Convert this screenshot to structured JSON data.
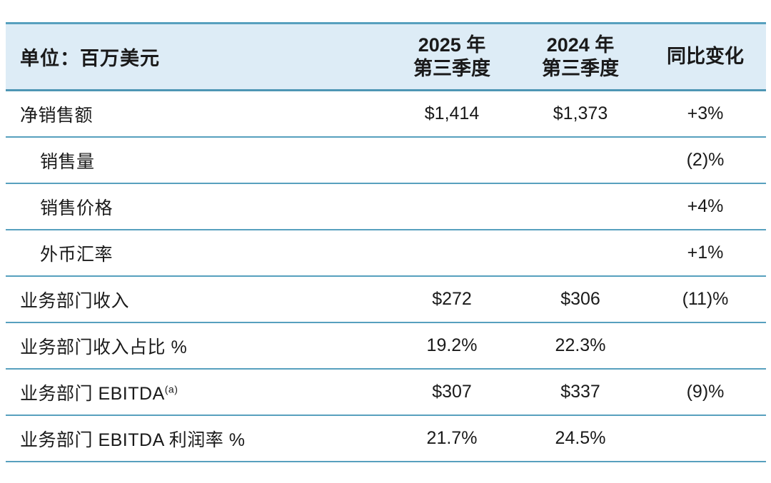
{
  "colors": {
    "header_bg": "#ddecf6",
    "rule_line": "#57a0be",
    "text": "#1a1a1a",
    "page_bg": "#ffffff"
  },
  "table": {
    "columns": [
      {
        "label": "单位：百万美元"
      },
      {
        "line1": "2025 年",
        "line2": "第三季度"
      },
      {
        "line1": "2024 年",
        "line2": "第三季度"
      },
      {
        "label": "同比变化"
      }
    ],
    "rows": [
      {
        "label": "净销售额",
        "sup": "",
        "indent": false,
        "q3_2025": "$1,414",
        "q3_2024": "$1,373",
        "yoy": "+3%"
      },
      {
        "label": "销售量",
        "sup": "",
        "indent": true,
        "q3_2025": "",
        "q3_2024": "",
        "yoy": "(2)%"
      },
      {
        "label": "销售价格",
        "sup": "",
        "indent": true,
        "q3_2025": "",
        "q3_2024": "",
        "yoy": "+4%"
      },
      {
        "label": "外币汇率",
        "sup": "",
        "indent": true,
        "q3_2025": "",
        "q3_2024": "",
        "yoy": "+1%"
      },
      {
        "label": "业务部门收入",
        "sup": "",
        "indent": false,
        "q3_2025": "$272",
        "q3_2024": "$306",
        "yoy": "(11)%"
      },
      {
        "label": "业务部门收入占比 %",
        "sup": "",
        "indent": false,
        "q3_2025": "19.2%",
        "q3_2024": "22.3%",
        "yoy": ""
      },
      {
        "label": "业务部门 EBITDA",
        "sup": "(a)",
        "indent": false,
        "q3_2025": "$307",
        "q3_2024": "$337",
        "yoy": "(9)%"
      },
      {
        "label": "业务部门 EBITDA 利润率 %",
        "sup": "",
        "indent": false,
        "q3_2025": "21.7%",
        "q3_2024": "24.5%",
        "yoy": ""
      }
    ]
  },
  "chart_data": {
    "type": "table",
    "title": "单位：百万美元",
    "columns": [
      "单位：百万美元",
      "2025 年 第三季度",
      "2024 年 第三季度",
      "同比变化"
    ],
    "rows": [
      [
        "净销售额",
        "$1,414",
        "$1,373",
        "+3%"
      ],
      [
        "销售量",
        "",
        "",
        "(2)%"
      ],
      [
        "销售价格",
        "",
        "",
        "+4%"
      ],
      [
        "外币汇率",
        "",
        "",
        "+1%"
      ],
      [
        "业务部门收入",
        "$272",
        "$306",
        "(11)%"
      ],
      [
        "业务部门收入占比 %",
        "19.2%",
        "22.3%",
        ""
      ],
      [
        "业务部门 EBITDA(a)",
        "$307",
        "$337",
        "(9)%"
      ],
      [
        "业务部门 EBITDA 利润率 %",
        "21.7%",
        "24.5%",
        ""
      ]
    ]
  }
}
